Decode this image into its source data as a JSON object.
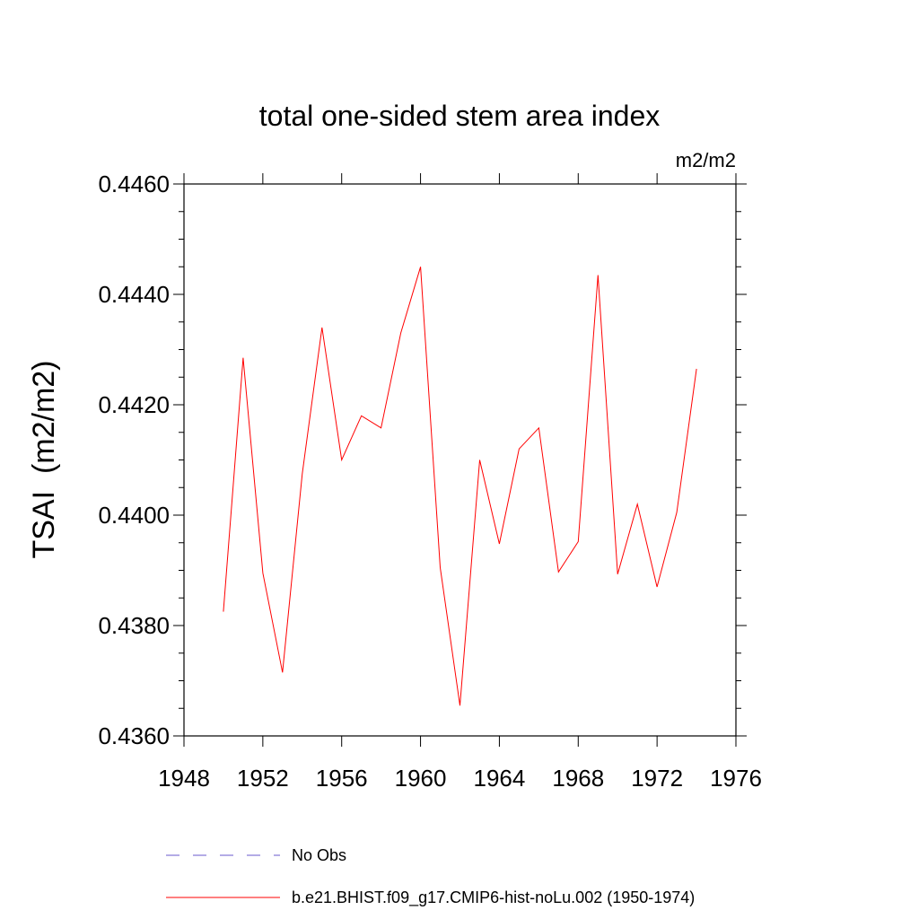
{
  "chart_data": {
    "type": "line",
    "title": "total one-sided stem area index",
    "units": "m2/m2",
    "ylabel": "TSAI  (m2/m2)",
    "xlabel": "",
    "xlim": [
      1948,
      1976
    ],
    "ylim": [
      0.436,
      0.446
    ],
    "x_ticks": [
      1948,
      1952,
      1956,
      1960,
      1964,
      1968,
      1972,
      1976
    ],
    "x_tick_labels": [
      "1948",
      "1952",
      "1956",
      "1960",
      "1964",
      "1968",
      "1972",
      "1976"
    ],
    "y_ticks": [
      0.436,
      0.438,
      0.44,
      0.442,
      0.444,
      0.446
    ],
    "y_tick_labels": [
      "0.4360",
      "0.4380",
      "0.4400",
      "0.4420",
      "0.4440",
      "0.4460"
    ],
    "grid": false,
    "series": [
      {
        "name": "b.e21.BHIST.f09_g17.CMIP6-hist-noLu.002 (1950-1974)",
        "color": "#ff0000",
        "x": [
          1950,
          1951,
          1952,
          1953,
          1954,
          1955,
          1956,
          1957,
          1958,
          1959,
          1960,
          1961,
          1962,
          1963,
          1964,
          1965,
          1966,
          1967,
          1968,
          1969,
          1970,
          1971,
          1972,
          1973,
          1974
        ],
        "y": [
          0.43825,
          0.44285,
          0.43895,
          0.43715,
          0.44075,
          0.4434,
          0.441,
          0.4418,
          0.44158,
          0.4433,
          0.4445,
          0.43905,
          0.43655,
          0.441,
          0.43948,
          0.4412,
          0.44158,
          0.43897,
          0.43952,
          0.44435,
          0.43893,
          0.4402,
          0.4387,
          0.44005,
          0.44265
        ]
      }
    ],
    "legend": [
      {
        "label": "No Obs",
        "color": "#6a5acd",
        "style": "dashed"
      },
      {
        "label": "b.e21.BHIST.f09_g17.CMIP6-hist-noLu.002 (1950-1974)",
        "color": "#ff0000",
        "style": "solid"
      }
    ],
    "legend_position": "bottom"
  }
}
